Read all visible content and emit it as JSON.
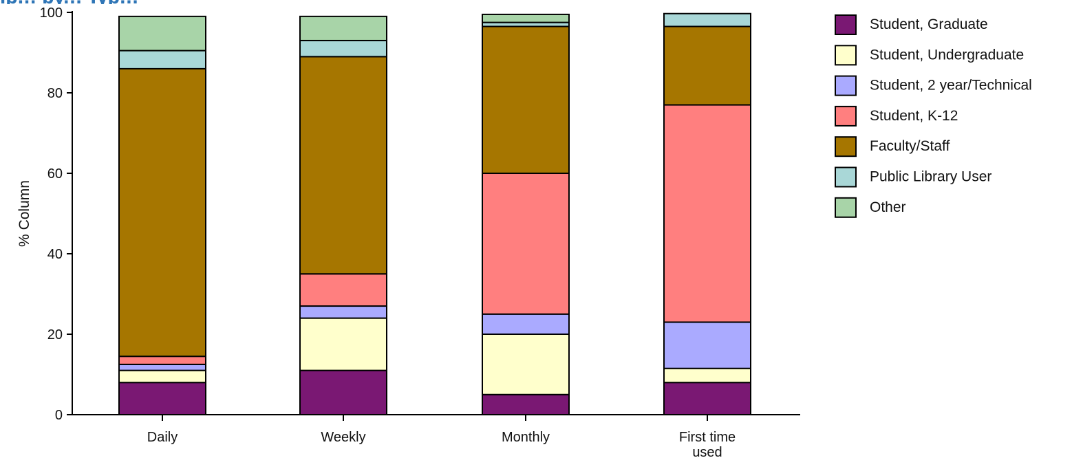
{
  "chart_data": {
    "type": "bar",
    "stacked": true,
    "title": "",
    "title_fragment": "ip... by... Typ...",
    "xlabel": "",
    "ylabel": "% Column",
    "ylim": [
      0,
      100
    ],
    "yticks": [
      0,
      20,
      40,
      60,
      80,
      100
    ],
    "categories": [
      "Daily",
      "Weekly",
      "Monthly",
      "First time used"
    ],
    "category_labels": [
      [
        "Daily"
      ],
      [
        "Weekly"
      ],
      [
        "Monthly"
      ],
      [
        "First time",
        "used"
      ]
    ],
    "series": [
      {
        "name": "Student, Graduate",
        "color": "#7a1873",
        "values": [
          8,
          11,
          5,
          8
        ]
      },
      {
        "name": "Student, Undergraduate",
        "color": "#ffffcc",
        "values": [
          3,
          13,
          15,
          3.5
        ]
      },
      {
        "name": "Student, 2 year/Technical",
        "color": "#aaaaff",
        "values": [
          1.5,
          3,
          5,
          11.5
        ]
      },
      {
        "name": "Student, K-12",
        "color": "#ff7f7f",
        "values": [
          2,
          8,
          35,
          54
        ]
      },
      {
        "name": "Faculty/Staff",
        "color": "#a67600",
        "values": [
          71.5,
          54,
          36.5,
          19.5
        ]
      },
      {
        "name": "Public Library User",
        "color": "#a9d7d7",
        "values": [
          4.5,
          4,
          1,
          3.2
        ]
      },
      {
        "name": "Other",
        "color": "#a8d4a8",
        "values": [
          8.5,
          6,
          2,
          0
        ]
      }
    ],
    "legend_position": "right",
    "grid": false
  }
}
